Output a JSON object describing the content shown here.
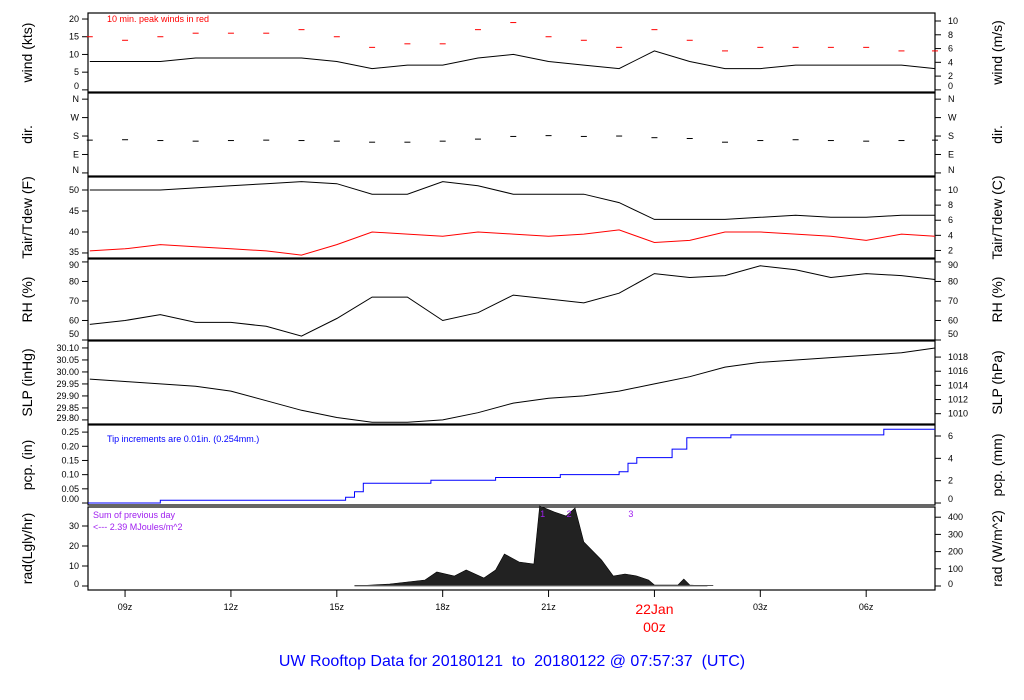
{
  "title": "UW Rooftop Data for 20180121  to  20180122 @ 07:57:37  (UTC)",
  "colors": {
    "title": "#0000ff",
    "peak": "#ff0000",
    "dew": "#ff0000",
    "pcp": "#0000ff",
    "rad_note": "#a020f0",
    "date_label": "#ff0000"
  },
  "chart_data": {
    "type": "line",
    "xlim": [
      "2018-01-21T07:57",
      "2018-01-22T07:57"
    ],
    "x_ticks": [
      {
        "t": "2018-01-21T09:00",
        "label": "09z"
      },
      {
        "t": "2018-01-21T12:00",
        "label": "12z"
      },
      {
        "t": "2018-01-21T15:00",
        "label": "15z"
      },
      {
        "t": "2018-01-21T18:00",
        "label": "18z"
      },
      {
        "t": "2018-01-21T21:00",
        "label": "21z"
      },
      {
        "t": "2018-01-22T00:00",
        "label": "",
        "date_label": "22Jan",
        "hour_label": "00z"
      },
      {
        "t": "2018-01-22T03:00",
        "label": "03z"
      },
      {
        "t": "2018-01-22T06:00",
        "label": "06z"
      }
    ],
    "times": [
      "2018-01-21T08:00",
      "2018-01-21T09:00",
      "2018-01-21T10:00",
      "2018-01-21T11:00",
      "2018-01-21T12:00",
      "2018-01-21T13:00",
      "2018-01-21T14:00",
      "2018-01-21T15:00",
      "2018-01-21T16:00",
      "2018-01-21T17:00",
      "2018-01-21T18:00",
      "2018-01-21T19:00",
      "2018-01-21T20:00",
      "2018-01-21T21:00",
      "2018-01-21T22:00",
      "2018-01-21T23:00",
      "2018-01-22T00:00",
      "2018-01-22T01:00",
      "2018-01-22T02:00",
      "2018-01-22T03:00",
      "2018-01-22T04:00",
      "2018-01-22T05:00",
      "2018-01-22T06:00",
      "2018-01-22T07:00",
      "2018-01-22T07:57"
    ],
    "panels": [
      {
        "id": "wind",
        "ylabel": "wind (kts)",
        "ylabel_right": "wind (m/s)",
        "ylim": [
          -0.6,
          21.7
        ],
        "ticks_left": [
          {
            "v": 0,
            "label": "0"
          },
          {
            "v": 5,
            "label": "5"
          },
          {
            "v": 10,
            "label": "10"
          },
          {
            "v": 15,
            "label": "15"
          },
          {
            "v": 20,
            "label": "20"
          }
        ],
        "ticks_right": [
          {
            "v": 0,
            "label": "0"
          },
          {
            "v": 3.89,
            "label": "2"
          },
          {
            "v": 7.78,
            "label": "4"
          },
          {
            "v": 11.66,
            "label": "6"
          },
          {
            "v": 15.55,
            "label": "8"
          },
          {
            "v": 19.44,
            "label": "10"
          }
        ],
        "annotation": "10 min. peak winds in red",
        "series": [
          {
            "key": "speed",
            "style": "line",
            "color": "#000000",
            "values": [
              8,
              8,
              8,
              9,
              9,
              9,
              9,
              8,
              6,
              7,
              7,
              9,
              10,
              8,
              7,
              6,
              11,
              8,
              6,
              6,
              7,
              7,
              7,
              7,
              6
            ]
          },
          {
            "key": "peak",
            "style": "dash",
            "color": "#ff0000",
            "values": [
              15,
              14,
              15,
              16,
              16,
              16,
              17,
              15,
              12,
              13,
              13,
              17,
              19,
              15,
              14,
              12,
              17,
              14,
              11,
              12,
              12,
              12,
              12,
              11,
              11
            ]
          }
        ]
      },
      {
        "id": "dir",
        "ylabel": "dir.",
        "ylabel_right": "dir.",
        "ylim": [
          -15,
          390
        ],
        "ticks_left": [
          {
            "v": 0,
            "label": "N"
          },
          {
            "v": 90,
            "label": "E"
          },
          {
            "v": 180,
            "label": "S"
          },
          {
            "v": 270,
            "label": "W"
          },
          {
            "v": 360,
            "label": "N"
          }
        ],
        "ticks_right": [
          {
            "v": 0,
            "label": "N"
          },
          {
            "v": 90,
            "label": "E"
          },
          {
            "v": 180,
            "label": "S"
          },
          {
            "v": 270,
            "label": "W"
          },
          {
            "v": 360,
            "label": "N"
          }
        ],
        "series": [
          {
            "key": "direction",
            "style": "dash",
            "color": "#000000",
            "values": [
              160,
              162,
              158,
              155,
              158,
              160,
              158,
              155,
              150,
              150,
              155,
              165,
              178,
              182,
              178,
              180,
              172,
              168,
              150,
              158,
              162,
              158,
              155,
              158,
              160
            ]
          }
        ]
      },
      {
        "id": "temp",
        "ylabel": "Tair/Tdew (F)",
        "ylabel_right": "Tair/Tdew (C)",
        "ylim": [
          33.8,
          53.1
        ],
        "ticks_left": [
          {
            "v": 35,
            "label": "35"
          },
          {
            "v": 40,
            "label": "40"
          },
          {
            "v": 45,
            "label": "45"
          },
          {
            "v": 50,
            "label": "50"
          }
        ],
        "ticks_right": [
          {
            "v": 35.6,
            "label": "2"
          },
          {
            "v": 39.2,
            "label": "4"
          },
          {
            "v": 42.8,
            "label": "6"
          },
          {
            "v": 46.4,
            "label": "8"
          },
          {
            "v": 50,
            "label": "10"
          }
        ],
        "series": [
          {
            "key": "tair",
            "style": "line",
            "color": "#000000",
            "values": [
              50,
              50,
              50,
              50.5,
              51,
              51.5,
              52,
              51.5,
              49,
              49,
              52,
              51,
              49,
              49,
              49,
              47,
              43,
              43,
              43,
              43.5,
              44,
              43.5,
              43.5,
              44,
              44
            ]
          },
          {
            "key": "tdew",
            "style": "line",
            "color": "#ff0000",
            "values": [
              35.5,
              36,
              37,
              36.5,
              36,
              35.5,
              34.5,
              37,
              40,
              39.5,
              39,
              40,
              39.5,
              39,
              39.5,
              40.5,
              37.5,
              38,
              40,
              40,
              39.5,
              39,
              38,
              39.5,
              39
            ]
          }
        ]
      },
      {
        "id": "rh",
        "ylabel": "RH (%)",
        "ylabel_right": "RH (%)",
        "ylim": [
          50,
          91.5
        ],
        "ticks_left": [
          {
            "v": 50,
            "label": "50"
          },
          {
            "v": 60,
            "label": "60"
          },
          {
            "v": 70,
            "label": "70"
          },
          {
            "v": 80,
            "label": "80"
          },
          {
            "v": 90,
            "label": "90"
          }
        ],
        "ticks_right": [
          {
            "v": 50,
            "label": "50"
          },
          {
            "v": 60,
            "label": "60"
          },
          {
            "v": 70,
            "label": "70"
          },
          {
            "v": 80,
            "label": "80"
          },
          {
            "v": 90,
            "label": "90"
          }
        ],
        "series": [
          {
            "key": "rh",
            "style": "line",
            "color": "#000000",
            "values": [
              58,
              60,
              63,
              59,
              59,
              57,
              52,
              61,
              72,
              72,
              60,
              64,
              73,
              71,
              69,
              74,
              84,
              82,
              83,
              88,
              86,
              82,
              84,
              83,
              81
            ]
          }
        ]
      },
      {
        "id": "slp",
        "ylabel": "SLP (inHg)",
        "ylabel_right": "SLP (hPa)",
        "ylim": [
          29.783,
          30.129
        ],
        "ticks_left": [
          {
            "v": 29.8,
            "label": "29.80"
          },
          {
            "v": 29.85,
            "label": "29.85"
          },
          {
            "v": 29.9,
            "label": "29.90"
          },
          {
            "v": 29.95,
            "label": "29.95"
          },
          {
            "v": 30.0,
            "label": "30.00"
          },
          {
            "v": 30.05,
            "label": "30.05"
          },
          {
            "v": 30.1,
            "label": "30.10"
          }
        ],
        "ticks_right": [
          {
            "v": 29.826,
            "label": "1010"
          },
          {
            "v": 29.885,
            "label": "1012"
          },
          {
            "v": 29.944,
            "label": "1014"
          },
          {
            "v": 30.003,
            "label": "1016"
          },
          {
            "v": 30.062,
            "label": "1018"
          }
        ],
        "series": [
          {
            "key": "slp",
            "style": "line",
            "color": "#000000",
            "values": [
              29.97,
              29.96,
              29.95,
              29.94,
              29.92,
              29.88,
              29.84,
              29.81,
              29.79,
              29.79,
              29.8,
              29.83,
              29.87,
              29.89,
              29.9,
              29.92,
              29.95,
              29.98,
              30.02,
              30.04,
              30.05,
              30.06,
              30.07,
              30.08,
              30.1
            ]
          }
        ]
      },
      {
        "id": "pcp",
        "ylabel": "pcp. (in)",
        "ylabel_right": "pcp. (mm)",
        "ylim": [
          -0.007,
          0.275
        ],
        "ticks_left": [
          {
            "v": 0,
            "label": "0.00"
          },
          {
            "v": 0.05,
            "label": "0.05"
          },
          {
            "v": 0.1,
            "label": "0.10"
          },
          {
            "v": 0.15,
            "label": "0.15"
          },
          {
            "v": 0.2,
            "label": "0.20"
          },
          {
            "v": 0.25,
            "label": "0.25"
          }
        ],
        "ticks_right": [
          {
            "v": 0,
            "label": "0"
          },
          {
            "v": 0.0787,
            "label": "2"
          },
          {
            "v": 0.1575,
            "label": "4"
          },
          {
            "v": 0.2362,
            "label": "6"
          }
        ],
        "annotation": "Tip increments are 0.01in. (0.254mm.)",
        "steps": [
          [
            "2018-01-21T07:57",
            0
          ],
          [
            "2018-01-21T10:00",
            0.01
          ],
          [
            "2018-01-21T15:15",
            0.02
          ],
          [
            "2018-01-21T15:30",
            0.04
          ],
          [
            "2018-01-21T15:45",
            0.07
          ],
          [
            "2018-01-21T17:40",
            0.08
          ],
          [
            "2018-01-21T19:30",
            0.09
          ],
          [
            "2018-01-21T21:20",
            0.1
          ],
          [
            "2018-01-21T23:00",
            0.11
          ],
          [
            "2018-01-21T23:15",
            0.14
          ],
          [
            "2018-01-21T23:30",
            0.16
          ],
          [
            "2018-01-22T00:30",
            0.19
          ],
          [
            "2018-01-22T00:55",
            0.23
          ],
          [
            "2018-01-22T02:10",
            0.24
          ],
          [
            "2018-01-22T06:30",
            0.26
          ],
          [
            "2018-01-22T07:57",
            0.26
          ]
        ]
      },
      {
        "id": "rad",
        "ylabel": "rad(Lgly/hr)",
        "ylabel_right": "rad (W/m^2)",
        "ylim": [
          -2,
          39.5
        ],
        "ticks_left": [
          {
            "v": 0,
            "label": "0"
          },
          {
            "v": 10,
            "label": "10"
          },
          {
            "v": 20,
            "label": "20"
          },
          {
            "v": 30,
            "label": "30"
          }
        ],
        "ticks_right": [
          {
            "v": 0,
            "label": "0"
          },
          {
            "v": 8.6,
            "label": "100"
          },
          {
            "v": 17.2,
            "label": "200"
          },
          {
            "v": 25.8,
            "label": "300"
          },
          {
            "v": 34.4,
            "label": "400"
          }
        ],
        "notes": [
          "Sum of previous day",
          "<--- 2.39 MJoules/m^2"
        ],
        "markers": [
          {
            "t": "2018-01-21T20:50",
            "label": "1"
          },
          {
            "t": "2018-01-21T21:35",
            "label": "2"
          },
          {
            "t": "2018-01-21T23:20",
            "label": "3"
          }
        ],
        "area": [
          [
            "2018-01-21T15:30",
            0
          ],
          [
            "2018-01-21T16:30",
            1
          ],
          [
            "2018-01-21T17:30",
            3
          ],
          [
            "2018-01-21T17:50",
            7
          ],
          [
            "2018-01-21T18:20",
            5
          ],
          [
            "2018-01-21T18:40",
            8
          ],
          [
            "2018-01-21T19:10",
            4
          ],
          [
            "2018-01-21T19:30",
            8
          ],
          [
            "2018-01-21T19:45",
            16
          ],
          [
            "2018-01-21T20:10",
            12
          ],
          [
            "2018-01-21T20:35",
            11
          ],
          [
            "2018-01-21T20:45",
            40
          ],
          [
            "2018-01-21T21:10",
            37
          ],
          [
            "2018-01-21T21:30",
            35
          ],
          [
            "2018-01-21T21:45",
            39
          ],
          [
            "2018-01-21T22:00",
            22
          ],
          [
            "2018-01-21T22:30",
            13
          ],
          [
            "2018-01-21T22:50",
            5
          ],
          [
            "2018-01-21T23:10",
            6
          ],
          [
            "2018-01-21T23:30",
            5
          ],
          [
            "2018-01-21T23:50",
            3
          ],
          [
            "2018-01-22T00:00",
            0.5
          ],
          [
            "2018-01-22T00:40",
            0.5
          ],
          [
            "2018-01-22T00:50",
            3.5
          ],
          [
            "2018-01-22T01:00",
            0.5
          ],
          [
            "2018-01-22T01:30",
            0
          ]
        ]
      }
    ]
  }
}
